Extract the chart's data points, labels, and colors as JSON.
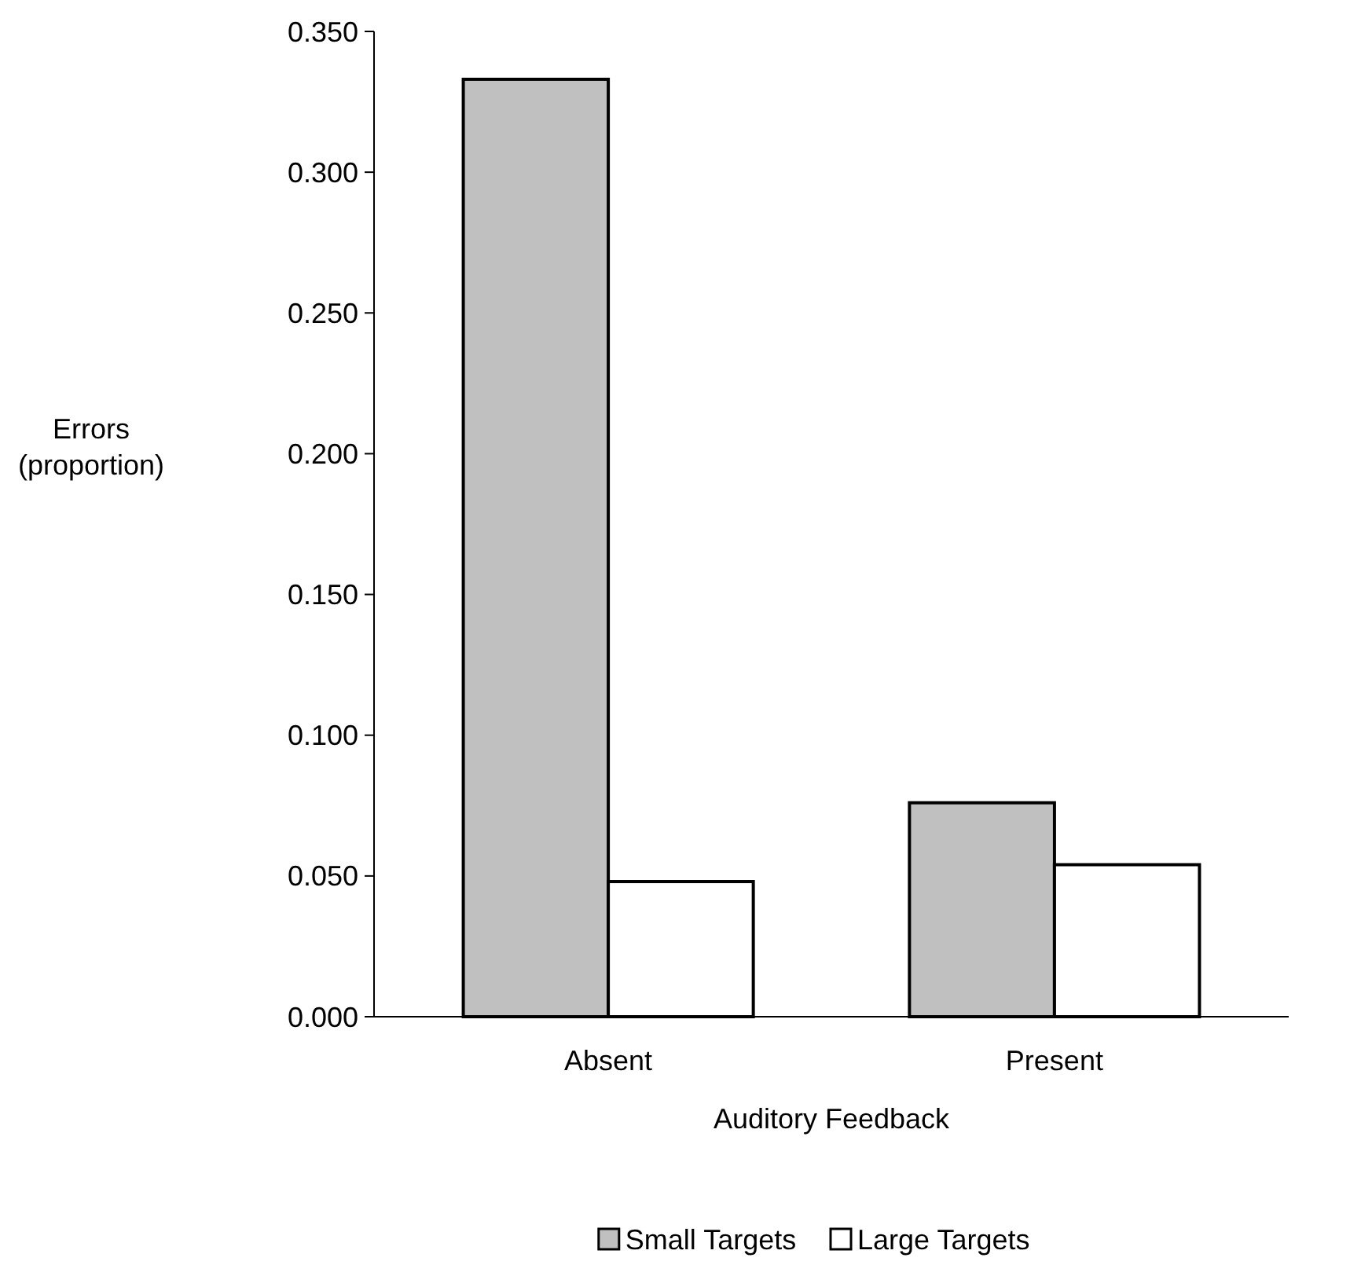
{
  "chart_data": {
    "type": "bar",
    "xlabel": "Auditory Feedback",
    "ylabel": "Errors\n(proportion)",
    "categories": [
      "Absent",
      "Present"
    ],
    "series": [
      {
        "name": "Small Targets",
        "color": "#c0c0c0",
        "values": [
          0.333,
          0.076
        ]
      },
      {
        "name": "Large Targets",
        "color": "#ffffff",
        "values": [
          0.048,
          0.054
        ]
      }
    ],
    "ylim": [
      0,
      0.35
    ],
    "yticks": [
      {
        "value": 0,
        "label": "0.000"
      },
      {
        "value": 0.05,
        "label": "0.050"
      },
      {
        "value": 0.1,
        "label": "0.100"
      },
      {
        "value": 0.15,
        "label": "0.150"
      },
      {
        "value": 0.2,
        "label": "0.200"
      },
      {
        "value": 0.25,
        "label": "0.250"
      },
      {
        "value": 0.3,
        "label": "0.300"
      },
      {
        "value": 0.35,
        "label": "0.350"
      }
    ],
    "grid": false,
    "legend": "bottom"
  }
}
